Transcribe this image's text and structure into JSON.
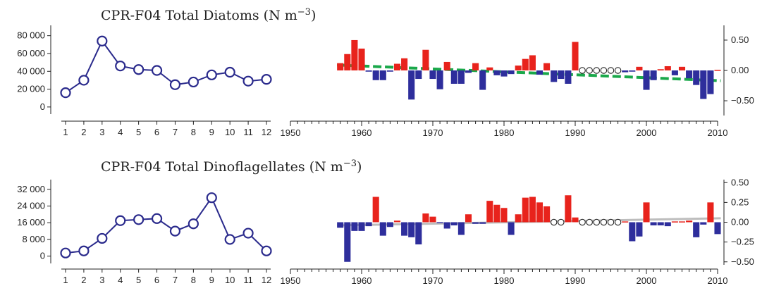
{
  "chart_data": [
    {
      "id": "diatoms",
      "type": "composite",
      "title": "CPR-F04 Total Diatoms (N m",
      "title_sup": "−3",
      "title_close": ")",
      "monthly": {
        "type": "line",
        "x": [
          1,
          2,
          3,
          4,
          5,
          6,
          7,
          8,
          9,
          10,
          11,
          12
        ],
        "values": [
          16000,
          30000,
          74000,
          46000,
          42000,
          41000,
          25000,
          28000,
          36000,
          39000,
          29000,
          31000
        ],
        "ylim": [
          -8000,
          90000
        ],
        "yticks": [
          0,
          20000,
          40000,
          60000,
          80000
        ],
        "ytick_labels": [
          "0",
          "20 000",
          "40 000",
          "60 000",
          "80 000"
        ],
        "color": "#2a2a8c"
      },
      "anomaly": {
        "type": "bar",
        "x": [
          1957,
          1958,
          1959,
          1960,
          1961,
          1962,
          1963,
          1964,
          1965,
          1966,
          1967,
          1968,
          1969,
          1970,
          1971,
          1972,
          1973,
          1974,
          1975,
          1976,
          1977,
          1978,
          1979,
          1980,
          1981,
          1982,
          1983,
          1984,
          1985,
          1986,
          1987,
          1988,
          1989,
          1990,
          1991,
          1992,
          1993,
          1994,
          1995,
          1996,
          1997,
          1998,
          1999,
          2000,
          2001,
          2002,
          2003,
          2004,
          2005,
          2006,
          2007,
          2008,
          2009,
          2010
        ],
        "values": [
          0.12,
          0.27,
          0.5,
          0.36,
          -0.02,
          -0.16,
          -0.16,
          -0.02,
          0.11,
          0.2,
          -0.48,
          -0.14,
          0.34,
          -0.14,
          -0.31,
          0.14,
          -0.22,
          -0.22,
          -0.04,
          0.12,
          -0.32,
          0.05,
          -0.08,
          -0.1,
          -0.06,
          0.08,
          0.19,
          0.25,
          -0.07,
          0.12,
          -0.19,
          -0.14,
          -0.22,
          0.47,
          null,
          null,
          null,
          null,
          null,
          null,
          -0.03,
          -0.02,
          0.06,
          -0.32,
          -0.16,
          0.02,
          0.07,
          -0.08,
          0.06,
          -0.13,
          -0.24,
          -0.47,
          -0.39,
          0.01
        ],
        "missing_years": [
          1991,
          1992,
          1993,
          1994,
          1995,
          1996
        ],
        "trend": {
          "start": [
            1957,
            0.09
          ],
          "end": [
            2010,
            -0.17
          ],
          "color": "#1aa84a",
          "style": "dashed"
        },
        "ylim": [
          -0.72,
          0.72
        ],
        "yticks": [
          -0.5,
          0,
          0.5
        ],
        "ytick_labels": [
          "−0.50",
          "0.00",
          "0.50"
        ],
        "positive_color": "#e8231c",
        "negative_color": "#2e2e9c"
      }
    },
    {
      "id": "dinoflagellates",
      "type": "composite",
      "title": "CPR-F04 Total Dinoflagellates (N m",
      "title_sup": "−3",
      "title_close": ")",
      "monthly": {
        "type": "line",
        "x": [
          1,
          2,
          3,
          4,
          5,
          6,
          7,
          8,
          9,
          10,
          11,
          12
        ],
        "values": [
          1500,
          2500,
          8500,
          17000,
          17500,
          18000,
          12000,
          15500,
          28000,
          8000,
          11000,
          2500
        ],
        "ylim": [
          -3500,
          36000
        ],
        "yticks": [
          0,
          8000,
          16000,
          24000,
          32000
        ],
        "ytick_labels": [
          "0",
          "8 000",
          "16 000",
          "24 000",
          "32 000"
        ],
        "color": "#2a2a8c"
      },
      "anomaly": {
        "type": "bar",
        "x": [
          1957,
          1958,
          1959,
          1960,
          1961,
          1962,
          1963,
          1964,
          1965,
          1966,
          1967,
          1968,
          1969,
          1970,
          1971,
          1972,
          1973,
          1974,
          1975,
          1976,
          1977,
          1978,
          1979,
          1980,
          1981,
          1982,
          1983,
          1984,
          1985,
          1986,
          1987,
          1988,
          1989,
          1990,
          1991,
          1992,
          1993,
          1994,
          1995,
          1996,
          1997,
          1998,
          1999,
          2000,
          2001,
          2002,
          2003,
          2004,
          2005,
          2006,
          2007,
          2008,
          2009,
          2010
        ],
        "values": [
          -0.07,
          -0.5,
          -0.11,
          -0.11,
          -0.05,
          0.32,
          -0.17,
          -0.06,
          0.02,
          -0.17,
          -0.19,
          -0.28,
          0.11,
          0.07,
          -0.01,
          -0.08,
          -0.04,
          -0.16,
          0.1,
          -0.02,
          -0.02,
          0.27,
          0.22,
          0.18,
          -0.16,
          0.1,
          0.31,
          0.32,
          0.25,
          0.2,
          null,
          null,
          0.34,
          0.06,
          null,
          null,
          null,
          null,
          null,
          null,
          0.01,
          -0.24,
          -0.18,
          0.25,
          -0.04,
          -0.04,
          -0.05,
          0.01,
          0.01,
          0.02,
          -0.19,
          -0.03,
          0.25,
          -0.15
        ],
        "missing_years": [
          1987,
          1988,
          1991,
          1992,
          1993,
          1994,
          1995,
          1996
        ],
        "trend": {
          "start": [
            1957,
            -0.04
          ],
          "end": [
            2010,
            0.05
          ],
          "color": "#bdbdbd",
          "style": "solid"
        },
        "ylim": [
          -0.52,
          0.52
        ],
        "yticks": [
          -0.5,
          -0.25,
          0,
          0.25,
          0.5
        ],
        "ytick_labels": [
          "−0.50",
          "−0.25",
          "0.00",
          "0.25",
          "0.50"
        ],
        "positive_color": "#e8231c",
        "negative_color": "#2e2e9c"
      }
    }
  ],
  "anomaly_xaxis": {
    "min": 1950,
    "max": 2010,
    "major": [
      1950,
      1960,
      1970,
      1980,
      1990,
      2000,
      2010
    ]
  }
}
